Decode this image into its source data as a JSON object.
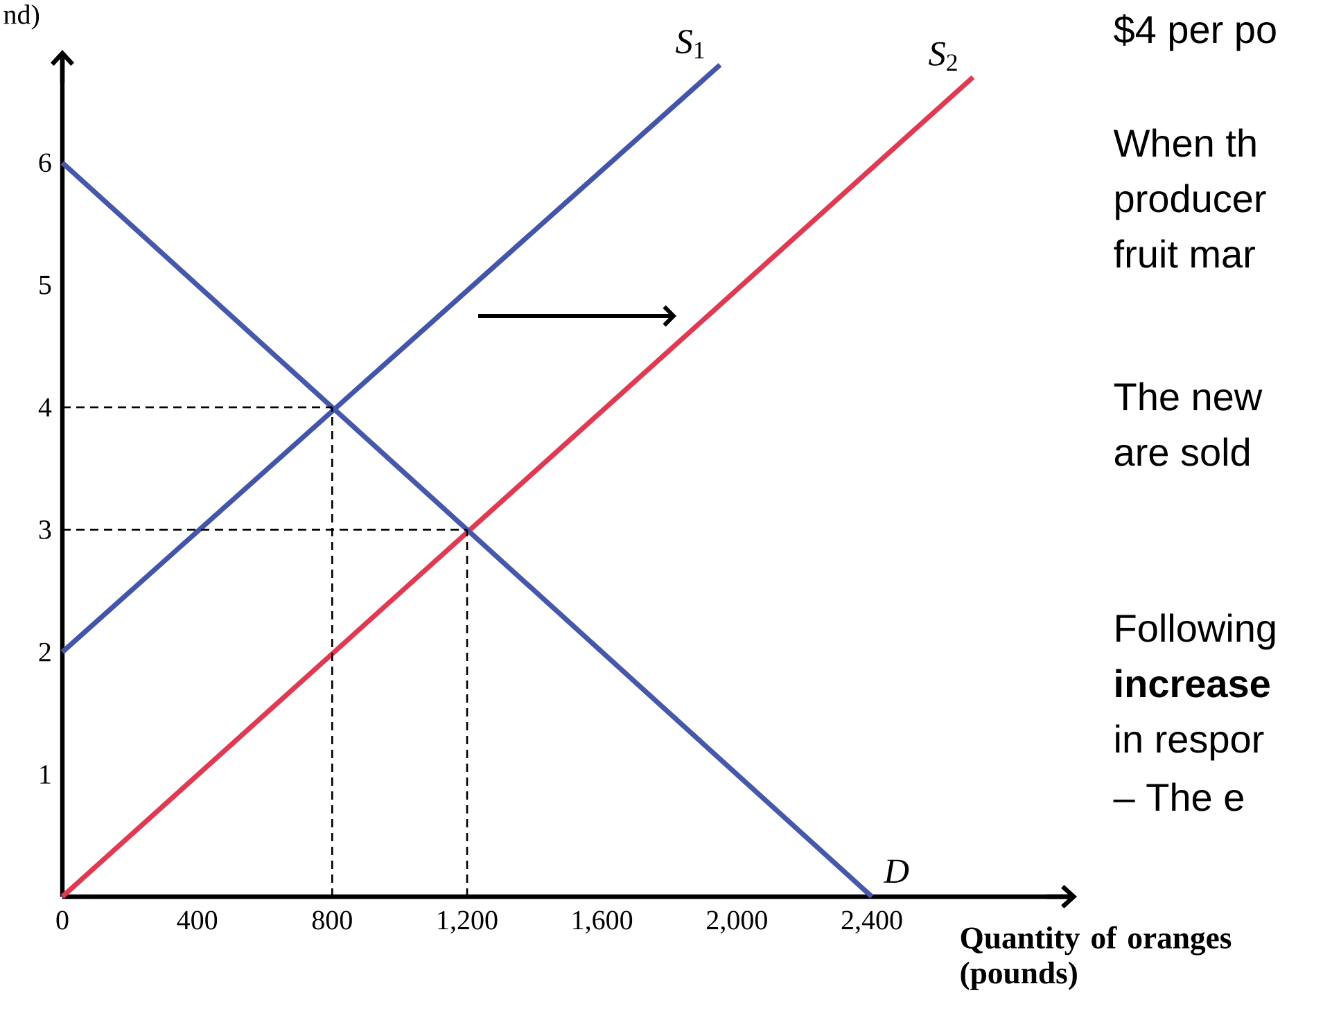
{
  "chart_data": {
    "type": "line",
    "ylabel": "nd)",
    "xlabel": "Quantity of oranges (pounds)",
    "xlim": [
      0,
      3000
    ],
    "ylim": [
      0,
      6.9
    ],
    "xticks": [
      0,
      400,
      800,
      {
        "value": 1200,
        "label": "1,200"
      },
      {
        "value": 1600,
        "label": "1,600"
      },
      {
        "value": 2000,
        "label": "2,000"
      },
      {
        "value": 2400,
        "label": "2,400"
      }
    ],
    "yticks": [
      1,
      2,
      3,
      4,
      5,
      6
    ],
    "grid": false,
    "marker": "none",
    "series": [
      {
        "name": "*S*$_{1}$",
        "color": "#4355a8",
        "x": [
          0,
          1950
        ],
        "values": [
          2,
          6.8
        ]
      },
      {
        "name": "*S*$_{2}$",
        "color": "#e03a52",
        "x": [
          0,
          2700
        ],
        "values": [
          0,
          6.7
        ]
      },
      {
        "name": "*D*",
        "color": "#4658aa",
        "x": [
          0,
          2400
        ],
        "values": [
          6,
          0
        ]
      },
      {
        "color": "#000000",
        "line_style": "dashed",
        "x": [
          0,
          800
        ],
        "values": [
          4,
          4
        ]
      },
      {
        "color": "#000000",
        "line_style": "dashed",
        "x": [
          800,
          800
        ],
        "values": [
          0,
          4
        ]
      },
      {
        "color": "#000000",
        "line_style": "dashed",
        "x": [
          0,
          1200
        ],
        "values": [
          3,
          3
        ]
      },
      {
        "color": "#000000",
        "line_style": "dashed",
        "x": [
          1200,
          1200
        ],
        "values": [
          0,
          3
        ]
      }
    ],
    "annotations": [
      "$4 per po",
      "When th",
      "producer",
      "fruit mar",
      "The new",
      "are sold",
      "Following",
      "**increase**",
      "in respor",
      "–   The e"
    ]
  }
}
